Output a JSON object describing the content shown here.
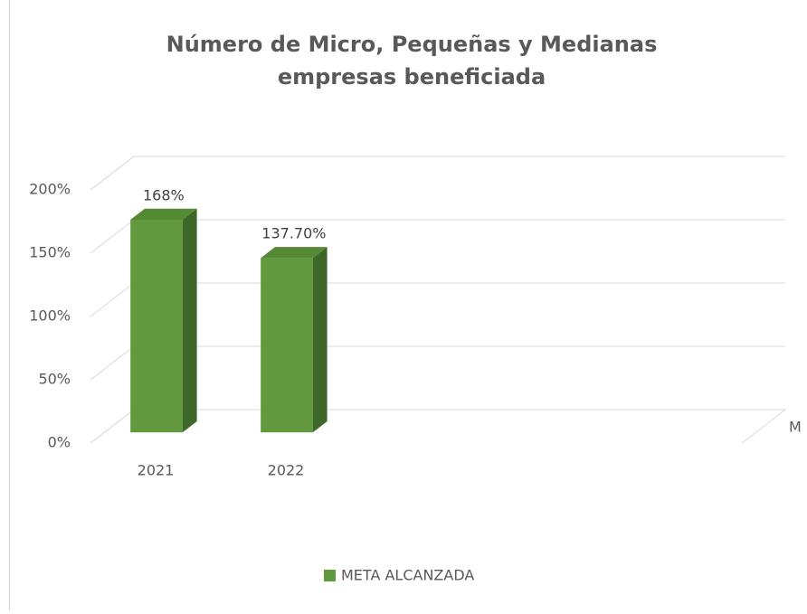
{
  "chart_data": {
    "type": "bar3d",
    "title": [
      "Número de Micro, Pequeñas y Medianas",
      "empresas beneficiada"
    ],
    "categories": [
      "2021",
      "2022"
    ],
    "series": [
      {
        "name": "META ALCANZADA",
        "color": "#62993e",
        "values": [
          168,
          137.7
        ],
        "value_labels": [
          "168%",
          "137.70%"
        ]
      }
    ],
    "ylim": [
      0,
      200
    ],
    "yticks": [
      {
        "value": 0,
        "label": "0%"
      },
      {
        "value": 50,
        "label": "50%"
      },
      {
        "value": 100,
        "label": "100%"
      },
      {
        "value": 150,
        "label": "150%"
      },
      {
        "value": 200,
        "label": "200%"
      }
    ],
    "grid": true,
    "legend": "bottom",
    "axis_end_label": "M"
  }
}
